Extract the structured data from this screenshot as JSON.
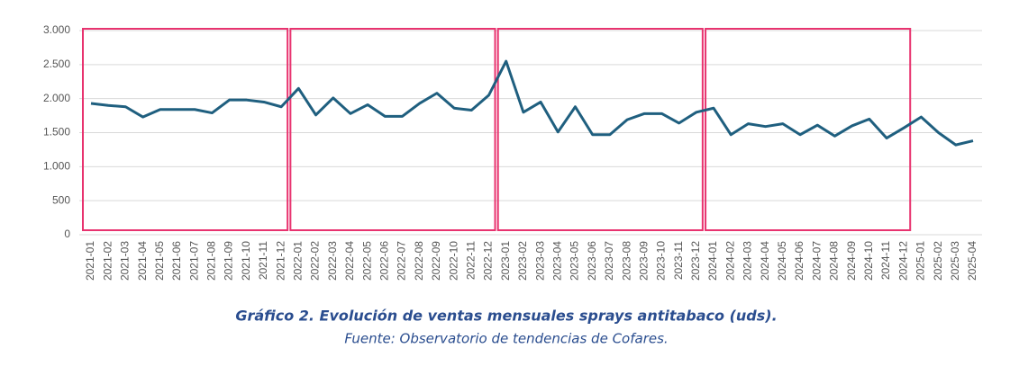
{
  "chart_data": {
    "type": "line",
    "title": "Gráfico 2. Evolución de ventas mensuales sprays antitabaco (uds).",
    "source": "Fuente: Observatorio de tendencias de Cofares.",
    "x": [
      "2021-01",
      "2021-02",
      "2021-03",
      "2021-04",
      "2021-05",
      "2021-06",
      "2021-07",
      "2021-08",
      "2021-09",
      "2021-10",
      "2021-11",
      "2021-12",
      "2022-01",
      "2022-02",
      "2022-03",
      "2022-04",
      "2022-05",
      "2022-06",
      "2022-07",
      "2022-08",
      "2022-09",
      "2022-10",
      "2022-11",
      "2022-12",
      "2023-01",
      "2023-02",
      "2023-03",
      "2023-04",
      "2023-05",
      "2023-06",
      "2023-07",
      "2023-08",
      "2023-09",
      "2023-10",
      "2023-11",
      "2023-12",
      "2024-01",
      "2024-02",
      "2024-03",
      "2024-04",
      "2024-05",
      "2024-06",
      "2024-07",
      "2024-08",
      "2024-09",
      "2024-10",
      "2024-11",
      "2024-12",
      "2025-01",
      "2025-02",
      "2025-03",
      "2025-04"
    ],
    "series": [
      {
        "color": "#1f5f7f",
        "values": [
          1930,
          1900,
          1880,
          1730,
          1840,
          1840,
          1840,
          1790,
          1980,
          1980,
          1950,
          1880,
          2150,
          1760,
          2010,
          1780,
          1910,
          1740,
          1740,
          1930,
          2080,
          1860,
          1830,
          2050,
          2550,
          1800,
          1950,
          1510,
          1880,
          1470,
          1470,
          1690,
          1780,
          1780,
          1640,
          1800,
          1860,
          1470,
          1630,
          1590,
          1630,
          1470,
          1610,
          1450,
          1600,
          1700,
          1420,
          1570,
          1730,
          1500,
          1320,
          1380
        ]
      }
    ],
    "ylim": [
      0,
      3000
    ],
    "yticks": [
      0,
      500,
      {
        "value": 1000,
        "label": "1.000"
      },
      {
        "value": 1500,
        "label": "1.500"
      },
      {
        "value": 2000,
        "label": "2.000"
      },
      {
        "value": 2500,
        "label": "2.500"
      },
      {
        "value": 3000,
        "label": "3.000"
      }
    ],
    "grid": true
  }
}
